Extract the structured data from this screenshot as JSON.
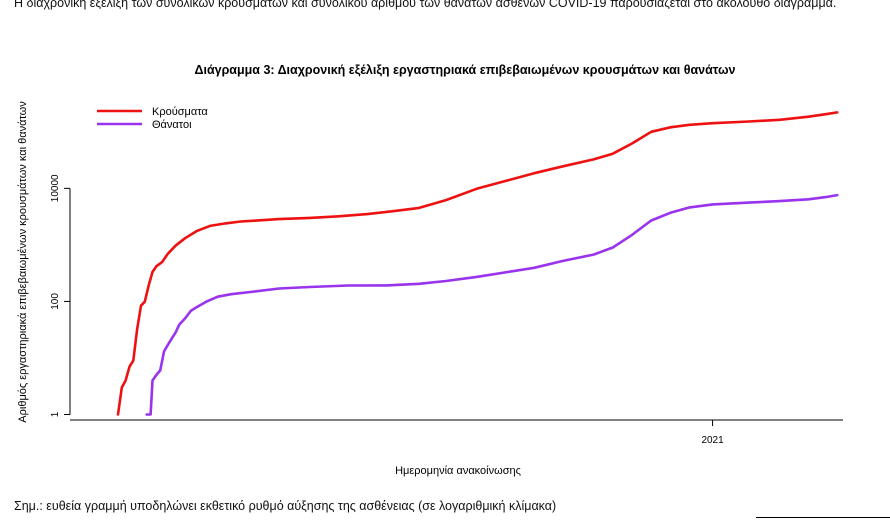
{
  "page": {
    "intro_text": "Η διαχρονική εξέλιξη των συνολικών κρουσμάτων και συνολικού αριθμού των θανάτων ασθενών COVID-19 παρουσιάζεται στο ακόλουθο διάγραμμα.",
    "note_text": "Σημ.: ευθεία γραμμή υποδηλώνει εκθετικό ρυθμό αύξησης της ασθένειας (σε λογαριθμική κλίμακα)"
  },
  "chart_data": {
    "type": "line",
    "title": "Διάγραμμα 3: Διαχρονική εξέλιξη εργαστηριακά επιβεβαιωμένων κρουσμάτων και θανάτων",
    "xlabel": "Ημερομηνία ανακοίνωσης",
    "ylabel": "Αριθμός εργαστηριακά επιβεβαιωμένων κρουσμάτων και θανάτων",
    "y_scale": "log",
    "ylim": [
      0.8,
      700000
    ],
    "xlim": [
      "2020-02-01",
      "2021-03-10"
    ],
    "y_ticks": [
      {
        "value": 1,
        "label": "1"
      },
      {
        "value": 100,
        "label": "100"
      },
      {
        "value": 10000,
        "label": "10000"
      }
    ],
    "x_ticks": [
      {
        "value": "2021-01-01",
        "label": "2021"
      }
    ],
    "grid": false,
    "legend_position": "top-left",
    "series": [
      {
        "name": "Κρούσματα",
        "color": "#ee1111",
        "points": [
          [
            "2020-02-26",
            1
          ],
          [
            "2020-02-28",
            3
          ],
          [
            "2020-03-01",
            4
          ],
          [
            "2020-03-03",
            7
          ],
          [
            "2020-03-05",
            9
          ],
          [
            "2020-03-07",
            32
          ],
          [
            "2020-03-09",
            84
          ],
          [
            "2020-03-11",
            99
          ],
          [
            "2020-03-13",
            190
          ],
          [
            "2020-03-15",
            331
          ],
          [
            "2020-03-17",
            418
          ],
          [
            "2020-03-20",
            495
          ],
          [
            "2020-03-23",
            695
          ],
          [
            "2020-03-27",
            966
          ],
          [
            "2020-04-01",
            1314
          ],
          [
            "2020-04-07",
            1755
          ],
          [
            "2020-04-14",
            2170
          ],
          [
            "2020-04-22",
            2401
          ],
          [
            "2020-04-30",
            2591
          ],
          [
            "2020-05-07",
            2678
          ],
          [
            "2020-05-20",
            2853
          ],
          [
            "2020-06-05",
            3000
          ],
          [
            "2020-06-20",
            3200
          ],
          [
            "2020-07-05",
            3500
          ],
          [
            "2020-07-20",
            4000
          ],
          [
            "2020-08-01",
            4500
          ],
          [
            "2020-08-15",
            6200
          ],
          [
            "2020-08-31",
            9800
          ],
          [
            "2020-09-15",
            13500
          ],
          [
            "2020-09-30",
            18500
          ],
          [
            "2020-10-15",
            24500
          ],
          [
            "2020-10-31",
            32500
          ],
          [
            "2020-11-10",
            41000
          ],
          [
            "2020-11-20",
            62000
          ],
          [
            "2020-11-30",
            100000
          ],
          [
            "2020-12-10",
            120000
          ],
          [
            "2020-12-20",
            133000
          ],
          [
            "2021-01-01",
            142000
          ],
          [
            "2021-01-20",
            152000
          ],
          [
            "2021-02-05",
            163000
          ],
          [
            "2021-02-20",
            185000
          ],
          [
            "2021-03-01",
            205000
          ],
          [
            "2021-03-07",
            220000
          ]
        ]
      },
      {
        "name": "Θάνατοι",
        "color": "#9933ee",
        "points": [
          [
            "2020-03-12",
            1
          ],
          [
            "2020-03-14",
            1
          ],
          [
            "2020-03-15",
            4
          ],
          [
            "2020-03-17",
            5
          ],
          [
            "2020-03-19",
            6
          ],
          [
            "2020-03-21",
            13
          ],
          [
            "2020-03-23",
            17
          ],
          [
            "2020-03-25",
            22
          ],
          [
            "2020-03-27",
            28
          ],
          [
            "2020-03-29",
            39
          ],
          [
            "2020-04-01",
            50
          ],
          [
            "2020-04-04",
            68
          ],
          [
            "2020-04-07",
            79
          ],
          [
            "2020-04-12",
            99
          ],
          [
            "2020-04-18",
            121
          ],
          [
            "2020-04-25",
            134
          ],
          [
            "2020-05-05",
            147
          ],
          [
            "2020-05-20",
            169
          ],
          [
            "2020-06-05",
            180
          ],
          [
            "2020-06-25",
            191
          ],
          [
            "2020-07-15",
            192
          ],
          [
            "2020-08-01",
            205
          ],
          [
            "2020-08-15",
            230
          ],
          [
            "2020-08-31",
            271
          ],
          [
            "2020-09-15",
            326
          ],
          [
            "2020-09-30",
            393
          ],
          [
            "2020-10-15",
            520
          ],
          [
            "2020-10-31",
            673
          ],
          [
            "2020-11-10",
            900
          ],
          [
            "2020-11-20",
            1500
          ],
          [
            "2020-11-30",
            2700
          ],
          [
            "2020-12-10",
            3700
          ],
          [
            "2020-12-20",
            4600
          ],
          [
            "2021-01-01",
            5200
          ],
          [
            "2021-01-20",
            5600
          ],
          [
            "2021-02-05",
            5950
          ],
          [
            "2021-02-20",
            6400
          ],
          [
            "2021-03-01",
            7000
          ],
          [
            "2021-03-07",
            7600
          ]
        ]
      }
    ]
  }
}
